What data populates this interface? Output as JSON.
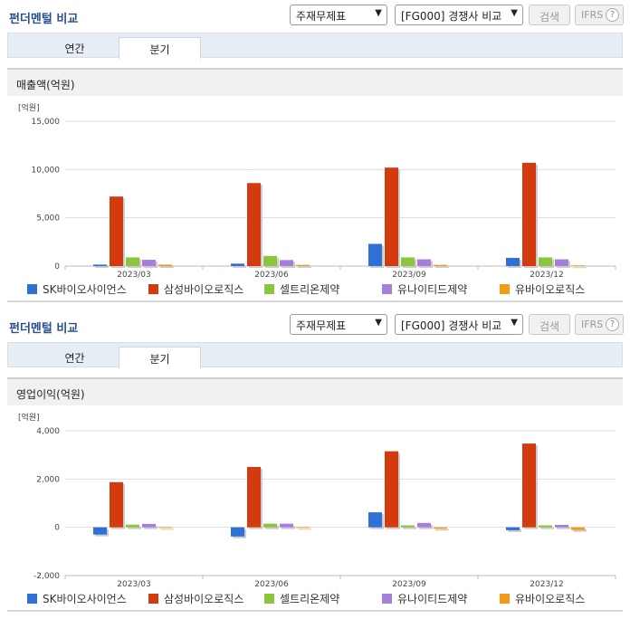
{
  "panels": [
    {
      "title": "펀더멘털 비교",
      "select_a": "주재무제표",
      "select_b": "[FG000] 경쟁사 비교",
      "search_label": "검색",
      "ifrs_label": "IFRS",
      "help_label": "?",
      "tabs": [
        "연간",
        "분기"
      ],
      "section_title": "매출액(억원)"
    },
    {
      "title": "펀더멘털 비교",
      "select_a": "주재무제표",
      "select_b": "[FG000] 경쟁사 비교",
      "search_label": "검색",
      "ifrs_label": "IFRS",
      "help_label": "?",
      "tabs": [
        "연간",
        "분기"
      ],
      "section_title": "영업이익(억원)"
    }
  ],
  "colors": {
    "SK바이오사이언스": "#2f6fd6",
    "삼성바이오로직스": "#d33b0f",
    "셀트리온제약": "#8cc63f",
    "유나이티드제약": "#a77ed9",
    "유바이오로직스": "#f39a16"
  },
  "chart_data": [
    {
      "type": "bar",
      "unit_label": "[억원]",
      "categories": [
        "2023/03",
        "2023/06",
        "2023/09",
        "2023/12"
      ],
      "ylim": [
        0,
        15000
      ],
      "yticks": [
        0,
        5000,
        10000,
        15000
      ],
      "ytick_labels": [
        "0",
        "5,000",
        "10,000",
        "15,000"
      ],
      "grid": true,
      "legend_position": "bottom",
      "series": [
        {
          "name": "SK바이오사이언스",
          "values": [
            150,
            250,
            2300,
            850
          ]
        },
        {
          "name": "삼성바이오로직스",
          "values": [
            7200,
            8600,
            10200,
            10700
          ]
        },
        {
          "name": "셀트리온제약",
          "values": [
            900,
            1050,
            900,
            900
          ]
        },
        {
          "name": "유나이티드제약",
          "values": [
            650,
            620,
            700,
            700
          ]
        },
        {
          "name": "유바이오로직스",
          "values": [
            150,
            120,
            120,
            70
          ]
        }
      ]
    },
    {
      "type": "bar",
      "unit_label": "[억원]",
      "categories": [
        "2023/03",
        "2023/06",
        "2023/09",
        "2023/12"
      ],
      "ylim": [
        -2000,
        4000
      ],
      "yticks": [
        -2000,
        0,
        2000,
        4000
      ],
      "ytick_labels": [
        "-2,000",
        "0",
        "2,000",
        "4,000"
      ],
      "grid": true,
      "legend_position": "bottom",
      "series": [
        {
          "name": "SK바이오사이언스",
          "values": [
            -300,
            -380,
            620,
            -120
          ]
        },
        {
          "name": "삼성바이오로직스",
          "values": [
            1870,
            2500,
            3150,
            3470
          ]
        },
        {
          "name": "셀트리온제약",
          "values": [
            110,
            150,
            80,
            80
          ]
        },
        {
          "name": "유나이티드제약",
          "values": [
            140,
            150,
            180,
            100
          ]
        },
        {
          "name": "유바이오로직스",
          "values": [
            10,
            10,
            -60,
            -110
          ]
        }
      ]
    }
  ]
}
